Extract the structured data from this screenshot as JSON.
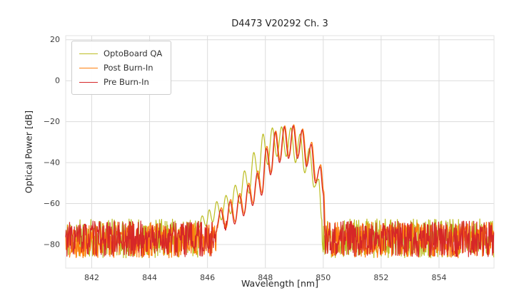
{
  "figure": {
    "background": "#ffffff",
    "grid_color": "#dcdcdc",
    "frame_color": "#e3e3e3",
    "tick_label_color": "#3d3d3d"
  },
  "chart_data": {
    "type": "line",
    "title": "D4473 V20292 Ch. 3",
    "xlabel": "Wavelength [nm]",
    "ylabel": "Optical Power [dB]",
    "xlim": [
      841.1,
      855.9
    ],
    "ylim": [
      -91.5,
      22
    ],
    "xticks": {
      "values": [
        842,
        844,
        846,
        848,
        850,
        852,
        854
      ],
      "labels": [
        "842",
        "844",
        "846",
        "848",
        "850",
        "852",
        "854"
      ]
    },
    "yticks": {
      "values": [
        20,
        0,
        -20,
        -40,
        -60,
        -80
      ],
      "labels": [
        "20",
        "0",
        "−20",
        "−40",
        "−60",
        "−80"
      ]
    },
    "grid": true,
    "legend_position": "upper left",
    "sample_step_nm": 0.015,
    "series": [
      {
        "name": "OptoBoard QA",
        "color": "#bcbd22",
        "seed": 11,
        "noise_floor": {
          "low": -86.5,
          "high": -67.5
        },
        "signal_keypoints": [
          [
            845.7,
            -72
          ],
          [
            845.82,
            -66
          ],
          [
            845.95,
            -71
          ],
          [
            846.06,
            -63
          ],
          [
            846.18,
            -69
          ],
          [
            846.32,
            -59
          ],
          [
            846.48,
            -68
          ],
          [
            846.64,
            -56
          ],
          [
            846.8,
            -65
          ],
          [
            846.96,
            -51
          ],
          [
            847.12,
            -60
          ],
          [
            847.28,
            -44
          ],
          [
            847.44,
            -55
          ],
          [
            847.6,
            -35
          ],
          [
            847.76,
            -48
          ],
          [
            847.92,
            -26
          ],
          [
            848.08,
            -41
          ],
          [
            848.24,
            -23
          ],
          [
            848.4,
            -37
          ],
          [
            848.56,
            -22.5
          ],
          [
            848.72,
            -37
          ],
          [
            848.88,
            -23
          ],
          [
            849.04,
            -40
          ],
          [
            849.2,
            -26
          ],
          [
            849.36,
            -45
          ],
          [
            849.52,
            -33
          ],
          [
            849.68,
            -52
          ],
          [
            849.84,
            -48
          ],
          [
            849.95,
            -68
          ]
        ]
      },
      {
        "name": "Post Burn-In",
        "color": "#ff7f0e",
        "seed": 22,
        "noise_floor": {
          "low": -86.5,
          "high": -69
        },
        "signal_keypoints": [
          [
            846.3,
            -74
          ],
          [
            846.48,
            -62
          ],
          [
            846.64,
            -72
          ],
          [
            846.8,
            -58
          ],
          [
            846.96,
            -69
          ],
          [
            847.12,
            -55
          ],
          [
            847.27,
            -65
          ],
          [
            847.43,
            -50
          ],
          [
            847.58,
            -60
          ],
          [
            847.74,
            -44
          ],
          [
            847.89,
            -55
          ],
          [
            848.05,
            -32
          ],
          [
            848.2,
            -45
          ],
          [
            848.36,
            -24.5
          ],
          [
            848.51,
            -39
          ],
          [
            848.67,
            -22
          ],
          [
            848.82,
            -37
          ],
          [
            848.98,
            -21.5
          ],
          [
            849.13,
            -37
          ],
          [
            849.29,
            -23.5
          ],
          [
            849.44,
            -41
          ],
          [
            849.6,
            -30
          ],
          [
            849.75,
            -49
          ],
          [
            849.91,
            -41
          ],
          [
            850.02,
            -54
          ],
          [
            850.08,
            -75
          ]
        ]
      },
      {
        "name": "Pre Burn-In",
        "color": "#d62728",
        "seed": 33,
        "noise_floor": {
          "low": -86,
          "high": -68.5
        },
        "signal_keypoints": [
          [
            846.28,
            -74
          ],
          [
            846.46,
            -63
          ],
          [
            846.62,
            -73
          ],
          [
            846.78,
            -59
          ],
          [
            846.94,
            -70
          ],
          [
            847.1,
            -56
          ],
          [
            847.25,
            -66
          ],
          [
            847.41,
            -51
          ],
          [
            847.56,
            -61
          ],
          [
            847.72,
            -45
          ],
          [
            847.87,
            -56
          ],
          [
            848.03,
            -33
          ],
          [
            848.18,
            -46
          ],
          [
            848.34,
            -25
          ],
          [
            848.49,
            -40
          ],
          [
            848.65,
            -22.5
          ],
          [
            848.8,
            -38
          ],
          [
            848.96,
            -22
          ],
          [
            849.11,
            -38
          ],
          [
            849.27,
            -24
          ],
          [
            849.42,
            -42
          ],
          [
            849.58,
            -31
          ],
          [
            849.73,
            -50
          ],
          [
            849.89,
            -42
          ],
          [
            850.0,
            -55
          ],
          [
            850.06,
            -76
          ]
        ]
      }
    ]
  }
}
